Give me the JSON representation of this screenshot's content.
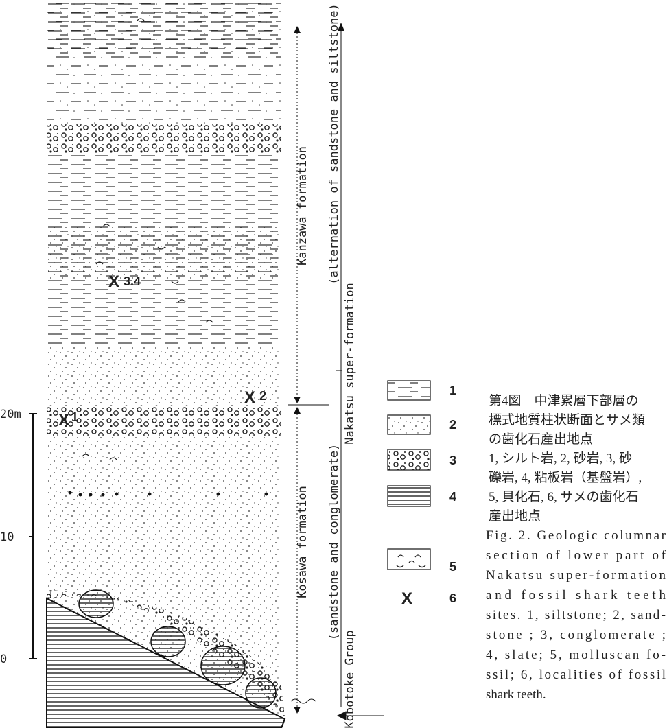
{
  "scale": {
    "labels": [
      "20m",
      "10",
      "0"
    ]
  },
  "column": {
    "localities": [
      {
        "marker": "X",
        "label": "3.4"
      },
      {
        "marker": "X",
        "label": "2"
      },
      {
        "marker": "X",
        "label": "1"
      }
    ]
  },
  "annotations": {
    "kanzawa": "Kanzawa formation",
    "kanzawa_note": "(alternation of sandstone and siltstone)",
    "nakatsu": "Nakatsu super-formation",
    "kosawa": "Kosawa formation",
    "kosawa_note": "(sandstone and conglomerate)",
    "kobotoke": "Kobotoke Group"
  },
  "legend": {
    "items": [
      {
        "number": "1"
      },
      {
        "number": "2"
      },
      {
        "number": "3"
      },
      {
        "number": "4"
      },
      {
        "number": "5"
      },
      {
        "symbol": "X",
        "number": "6"
      }
    ]
  },
  "caption": {
    "japanese": [
      "第4図　中津累層下部層の",
      "標式地質柱状断面とサメ類",
      "の歯化石産出地点",
      "1, シルト岩, 2, 砂岩, 3, 砂",
      "礫岩, 4, 粘板岩（基盤岩）,",
      "5, 貝化石, 6, サメの歯化石",
      "産出地点"
    ],
    "english": [
      "Fig. 2. Geologic columnar",
      "section of lower part of",
      "Nakatsu super-formation",
      "and fossil shark teeth",
      "sites. 1, siltstone; 2, sand-",
      "stone ; 3, conglomerate ;",
      "4, slate; 5, molluscan fo-",
      "ssil; 6, localities of fossil",
      "shark teeth."
    ]
  }
}
